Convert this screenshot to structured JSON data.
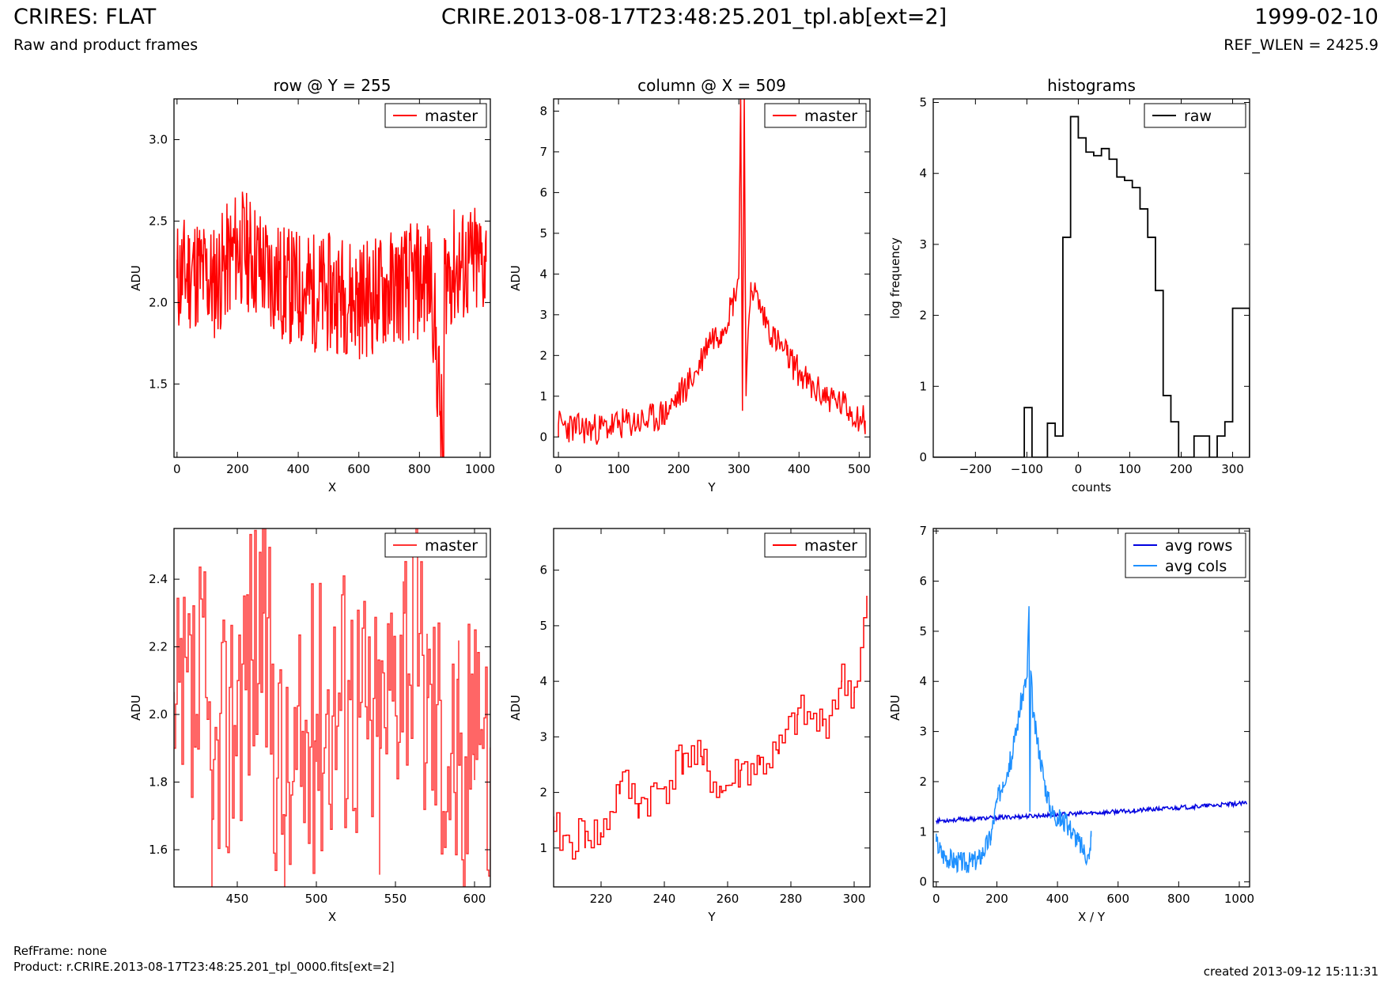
{
  "header": {
    "title": "CRIRES: FLAT",
    "subtitle": "Raw and product frames",
    "center_title": "CRIRE.2013-08-17T23:48:25.201_tpl.ab[ext=2]",
    "date": "1999-02-10",
    "ref_wlen": "REF_WLEN = 2425.9"
  },
  "footer": {
    "ref_frame": "RefFrame: none",
    "product": "Product: r.CRIRE.2013-08-17T23:48:25.201_tpl_0000.fits[ext=2]",
    "created": "created 2013-09-12 15:11:31"
  },
  "colors": {
    "red": "#ff0000",
    "red_light": "#ff3333",
    "black": "#000000",
    "blue": "#0000e0",
    "light_blue": "#1e90ff"
  },
  "chart_data": [
    {
      "id": "row",
      "type": "line",
      "title": "row @ Y = 255",
      "xlabel": "X",
      "ylabel": "ADU",
      "xlim": [
        -10,
        1034
      ],
      "ylim": [
        1.05,
        3.25
      ],
      "xticks": [
        0,
        200,
        400,
        600,
        800,
        1000
      ],
      "yticks": [
        1.5,
        2.0,
        2.5,
        3.0
      ],
      "ytick_labels": [
        "1.5",
        "2.0",
        "2.5",
        "3.0"
      ],
      "legend": "top-right",
      "series": [
        {
          "name": "master",
          "color": "#ff0000",
          "x": [
            0,
            60,
            120,
            180,
            200,
            240,
            300,
            360,
            420,
            480,
            540,
            600,
            660,
            720,
            780,
            840,
            880,
            882,
            900,
            960,
            1020
          ],
          "y": [
            2.15,
            2.2,
            2.12,
            2.28,
            2.35,
            2.3,
            2.18,
            2.1,
            2.08,
            2.05,
            2.06,
            2.02,
            2.05,
            2.1,
            2.12,
            2.15,
            1.0,
            2.15,
            2.2,
            2.22,
            2.25
          ]
        }
      ]
    },
    {
      "id": "column",
      "type": "line",
      "title": "column @ X = 509",
      "xlabel": "Y",
      "ylabel": "ADU",
      "xlim": [
        -8,
        518
      ],
      "ylim": [
        -0.5,
        8.3
      ],
      "xticks": [
        0,
        100,
        200,
        300,
        400,
        500
      ],
      "yticks": [
        0,
        1,
        2,
        3,
        4,
        5,
        6,
        7,
        8
      ],
      "legend": "top-right",
      "series": [
        {
          "name": "master",
          "color": "#ff0000",
          "x": [
            0,
            30,
            70,
            100,
            150,
            180,
            200,
            230,
            250,
            270,
            290,
            300,
            303,
            306,
            309,
            312,
            320,
            340,
            360,
            380,
            420,
            460,
            510
          ],
          "y": [
            0.3,
            0.2,
            0.2,
            0.3,
            0.4,
            0.6,
            1.0,
            1.6,
            2.4,
            2.6,
            3.3,
            4.0,
            8.4,
            1.0,
            8.4,
            1.0,
            3.8,
            3.0,
            2.4,
            2.0,
            1.2,
            0.9,
            0.4
          ]
        }
      ]
    },
    {
      "id": "histograms",
      "type": "bar",
      "title": "histograms",
      "xlabel": "counts",
      "ylabel": "log frequency",
      "xlim": [
        -282,
        333
      ],
      "ylim": [
        0,
        5.05
      ],
      "xticks": [
        -200,
        -100,
        0,
        100,
        200,
        300
      ],
      "xtick_labels": [
        "−200",
        "−100",
        "0",
        "100",
        "200",
        "300"
      ],
      "yticks": [
        0,
        1,
        2,
        3,
        4,
        5
      ],
      "legend": "top-right",
      "series": [
        {
          "name": "raw",
          "color": "#000000",
          "bin_edges": [
            -282,
            -105,
            -90,
            -75,
            -60,
            -45,
            -30,
            -15,
            0,
            15,
            30,
            45,
            60,
            75,
            90,
            105,
            120,
            135,
            150,
            165,
            180,
            195,
            210,
            225,
            240,
            255,
            270,
            285,
            300,
            315,
            333
          ],
          "counts": [
            0,
            0.7,
            0,
            0,
            0.48,
            0.3,
            3.1,
            4.8,
            4.5,
            4.3,
            4.25,
            4.35,
            4.2,
            3.95,
            3.9,
            3.8,
            3.5,
            3.1,
            2.35,
            0.87,
            0.5,
            0,
            0,
            0.3,
            0.3,
            0,
            0.3,
            0.5,
            2.1,
            2.1
          ]
        }
      ]
    },
    {
      "id": "row-zoom",
      "type": "line",
      "title": "",
      "xlabel": "X",
      "ylabel": "ADU",
      "xlim": [
        410,
        610
      ],
      "ylim": [
        1.49,
        2.55
      ],
      "xticks": [
        450,
        500,
        550,
        600
      ],
      "yticks": [
        1.6,
        1.8,
        2.0,
        2.2,
        2.4
      ],
      "ytick_labels": [
        "1.6",
        "1.8",
        "2.0",
        "2.2",
        "2.4"
      ],
      "legend": "top-right",
      "series": [
        {
          "name": "master",
          "color": "#ff3333",
          "x": [
            410,
            430,
            434,
            450,
            466,
            480,
            500,
            520,
            540,
            555,
            570,
            590,
            592,
            600,
            610
          ],
          "y": [
            1.9,
            2.05,
            1.69,
            2.1,
            2.3,
            1.7,
            2.0,
            2.1,
            1.9,
            2.3,
            2.05,
            1.85,
            1.57,
            2.25,
            1.72
          ]
        }
      ]
    },
    {
      "id": "column-zoom",
      "type": "line",
      "title": "",
      "xlabel": "Y",
      "ylabel": "ADU",
      "xlim": [
        205,
        305
      ],
      "ylim": [
        0.3,
        6.75
      ],
      "xticks": [
        220,
        240,
        260,
        280,
        300
      ],
      "yticks": [
        1,
        2,
        3,
        4,
        5,
        6
      ],
      "legend": "top-right",
      "series": [
        {
          "name": "master",
          "color": "#ff0000",
          "x": [
            205,
            210,
            215,
            220,
            226,
            232,
            240,
            246,
            252,
            258,
            264,
            270,
            276,
            282,
            290,
            296,
            300,
            304
          ],
          "y": [
            1.3,
            1.1,
            1.3,
            1.2,
            2.2,
            1.8,
            2.1,
            2.7,
            2.5,
            2.0,
            2.4,
            2.5,
            2.7,
            3.4,
            3.2,
            4.0,
            3.8,
            5.4
          ]
        }
      ]
    },
    {
      "id": "averages",
      "type": "line",
      "title": "",
      "xlabel": "X / Y",
      "ylabel": "ADU",
      "xlim": [
        -10,
        1034
      ],
      "ylim": [
        -0.1,
        7.05
      ],
      "xticks": [
        0,
        200,
        400,
        600,
        800,
        1000
      ],
      "yticks": [
        0,
        1,
        2,
        3,
        4,
        5,
        6,
        7
      ],
      "legend": "top-right",
      "series": [
        {
          "name": "avg rows",
          "color": "#0000e0",
          "x": [
            0,
            200,
            400,
            600,
            800,
            1024
          ],
          "y": [
            1.22,
            1.28,
            1.34,
            1.4,
            1.48,
            1.57
          ]
        },
        {
          "name": "avg cols",
          "color": "#1e90ff",
          "x": [
            0,
            20,
            60,
            100,
            140,
            180,
            200,
            220,
            250,
            280,
            300,
            306,
            309,
            312,
            320,
            340,
            360,
            380,
            400,
            440,
            470,
            505,
            510,
            511
          ],
          "y": [
            0.8,
            0.55,
            0.42,
            0.38,
            0.45,
            0.9,
            1.6,
            2.0,
            2.5,
            3.6,
            4.1,
            5.5,
            1.4,
            4.2,
            3.3,
            2.6,
            1.9,
            1.4,
            1.3,
            1.1,
            0.8,
            0.45,
            0.9,
            0.9
          ]
        }
      ]
    }
  ]
}
